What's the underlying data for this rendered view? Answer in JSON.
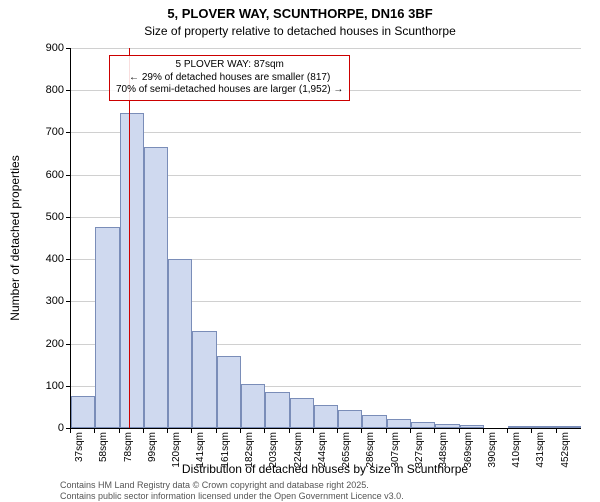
{
  "title": "5, PLOVER WAY, SCUNTHORPE, DN16 3BF",
  "subtitle": "Size of property relative to detached houses in Scunthorpe",
  "ylabel": "Number of detached properties",
  "xlabel": "Distribution of detached houses by size in Scunthorpe",
  "chart": {
    "type": "histogram",
    "ylim": [
      0,
      900
    ],
    "ytick_step": 100,
    "yticks": [
      0,
      100,
      200,
      300,
      400,
      500,
      600,
      700,
      800,
      900
    ],
    "bar_fill": "#cfd9ef",
    "bar_border": "#7a8db8",
    "grid_color": "#d0d0d0",
    "background_color": "#ffffff",
    "marker_color": "#cc0000",
    "marker_x_sqm": 87,
    "info_box_border": "#cc0000",
    "info_box_bg": "rgba(255,255,255,0.87)",
    "title_fontsize": 13,
    "subtitle_fontsize": 12,
    "label_fontsize": 12,
    "tick_fontsize": 11,
    "xtick_fontsize": 10,
    "info_fontsize": 10,
    "x_start": 37,
    "x_bin_width": 21,
    "categories": [
      "37sqm",
      "58sqm",
      "78sqm",
      "99sqm",
      "120sqm",
      "141sqm",
      "161sqm",
      "182sqm",
      "203sqm",
      "224sqm",
      "244sqm",
      "265sqm",
      "286sqm",
      "307sqm",
      "327sqm",
      "348sqm",
      "369sqm",
      "390sqm",
      "410sqm",
      "431sqm",
      "452sqm"
    ],
    "values": [
      75,
      475,
      745,
      665,
      400,
      230,
      170,
      105,
      85,
      72,
      55,
      42,
      32,
      22,
      15,
      10,
      8,
      0,
      5,
      3,
      3
    ]
  },
  "info_box": {
    "line1": "5 PLOVER WAY: 87sqm",
    "line2": "← 29% of detached houses are smaller (817)",
    "line3": "70% of semi-detached houses are larger (1,952) →"
  },
  "attribution": {
    "line1": "Contains HM Land Registry data © Crown copyright and database right 2025.",
    "line2": "Contains public sector information licensed under the Open Government Licence v3.0."
  }
}
